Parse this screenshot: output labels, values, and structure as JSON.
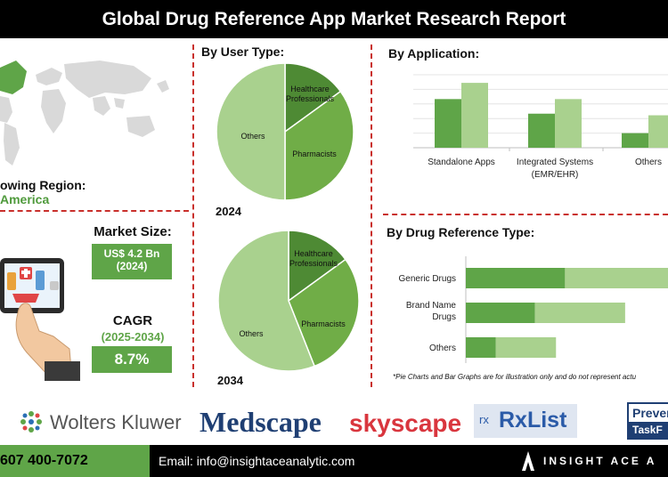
{
  "header": {
    "title": "Global Drug Reference App Market Research Report"
  },
  "region": {
    "label": "owing Region:",
    "value": "America"
  },
  "market_size": {
    "label": "Market Size:",
    "value": "US$ 4.2 Bn",
    "year": "(2024)"
  },
  "cagr": {
    "label": "CAGR",
    "years": "(2025-2034)",
    "value": "8.7%"
  },
  "sections": {
    "user_type": "By User Type:",
    "application": "By  Application:",
    "drug_type": "By Drug Reference Type:"
  },
  "note": "*Pie Charts and Bar Graphs are for illustration only and do not represent actu",
  "logos": {
    "wolters": "Wolters Kluwer",
    "medscape": "Medscape",
    "skyscape": "skyscape",
    "rxlist": "RxList",
    "rx_icon": "rx",
    "preven_1": "Preven",
    "preven_2": "TaskF"
  },
  "footer": {
    "phone": "607 400-7072",
    "email": "Email: info@insightaceanalytic.com",
    "brand": "INSIGHT ACE A"
  },
  "colors": {
    "dark_green": "#5fa548",
    "light_green": "#a9d18e",
    "mid_green": "#70ad47",
    "darker_green": "#4e8a34"
  },
  "chart_data": [
    {
      "type": "pie",
      "title": "2024",
      "categories": [
        "Healthcare Professionals",
        "Pharmacists",
        "Others"
      ],
      "values": [
        15,
        35,
        50
      ]
    },
    {
      "type": "pie",
      "title": "2034",
      "categories": [
        "Healthcare Professionals",
        "Pharmacists",
        "Others"
      ],
      "values": [
        15,
        29,
        56
      ]
    },
    {
      "type": "bar",
      "orientation": "vertical",
      "categories": [
        "Standalone Apps",
        "Integrated Systems (EMR/EHR)",
        "Others"
      ],
      "series": [
        {
          "values": [
            30,
            21,
            9
          ]
        },
        {
          "values": [
            40,
            30,
            20
          ]
        }
      ],
      "ylim": [
        0,
        45
      ]
    },
    {
      "type": "bar",
      "orientation": "horizontal",
      "stacked": true,
      "categories": [
        "Generic Drugs",
        "Brand Name Drugs",
        "Others"
      ],
      "series": [
        {
          "values": [
            33,
            23,
            10
          ]
        },
        {
          "values": [
            40,
            30,
            20
          ]
        }
      ],
      "xlim": [
        0,
        80
      ]
    }
  ]
}
